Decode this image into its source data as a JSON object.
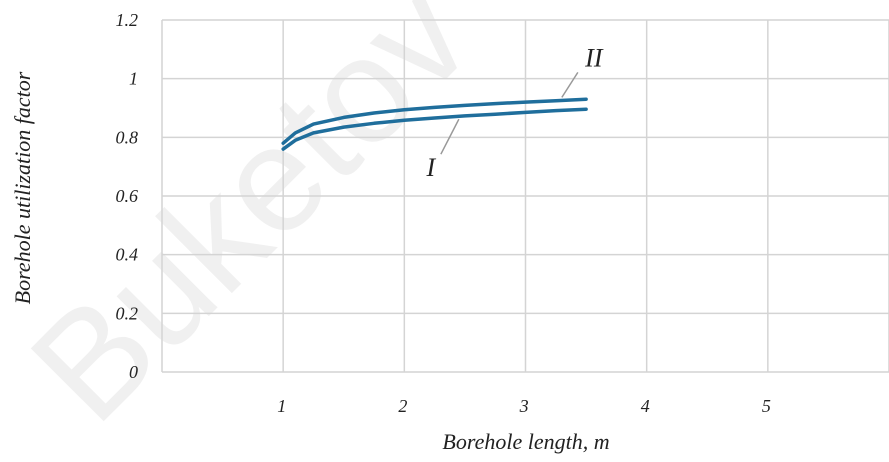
{
  "chart_data": {
    "type": "line",
    "xlabel": "Borehole length, m",
    "ylabel": "Borehole utilization factor",
    "x_tick_labels": [
      "1",
      "2",
      "3",
      "4",
      "5"
    ],
    "y_tick_labels": [
      "0",
      "0.2",
      "0.4",
      "0.6",
      "0.8",
      "1",
      "1.2"
    ],
    "xlim": [
      0,
      6
    ],
    "ylim": [
      0,
      1.2
    ],
    "grid": true,
    "series": [
      {
        "name": "I",
        "color": "#1f6e9c",
        "x": [
          1.0,
          1.1,
          1.25,
          1.5,
          1.75,
          2.0,
          2.25,
          2.5,
          2.75,
          3.0,
          3.25,
          3.5
        ],
        "y": [
          0.76,
          0.79,
          0.815,
          0.835,
          0.848,
          0.858,
          0.866,
          0.873,
          0.879,
          0.885,
          0.891,
          0.896
        ]
      },
      {
        "name": "II",
        "color": "#1f6e9c",
        "x": [
          1.0,
          1.1,
          1.25,
          1.5,
          1.75,
          2.0,
          2.25,
          2.5,
          2.75,
          3.0,
          3.25,
          3.5
        ],
        "y": [
          0.78,
          0.815,
          0.845,
          0.868,
          0.883,
          0.894,
          0.902,
          0.909,
          0.915,
          0.92,
          0.925,
          0.93
        ]
      }
    ]
  },
  "watermark": "Buketov"
}
